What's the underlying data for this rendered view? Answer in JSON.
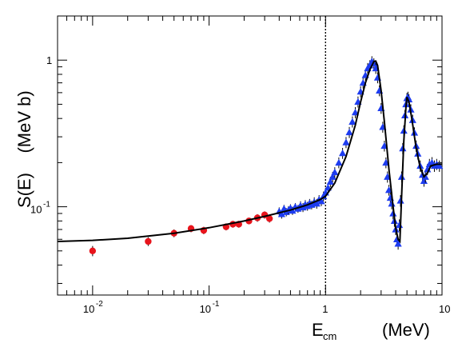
{
  "chart_data": {
    "type": "scatter",
    "title": "",
    "ylabel": "S(E)    (MeV b)",
    "xlabel_main": "E",
    "xlabel_sub": "cm",
    "xlabel_unit": "(MeV)",
    "xscale": "log",
    "yscale": "log",
    "xlim": [
      0.005,
      10
    ],
    "ylim": [
      0.025,
      2.0
    ],
    "grid": false,
    "legend": "none",
    "x_ticks": [
      {
        "value": 0.01,
        "base": "10",
        "exp": "-2"
      },
      {
        "value": 0.1,
        "base": "10",
        "exp": "-1"
      },
      {
        "value": 1,
        "base": "1",
        "exp": ""
      },
      {
        "value": 10,
        "base": "10",
        "exp": ""
      }
    ],
    "y_ticks": [
      {
        "value": 0.1,
        "base": "10",
        "exp": "-1"
      },
      {
        "value": 1,
        "base": "1",
        "exp": ""
      }
    ],
    "reference_line_x": 1,
    "series": [
      {
        "marker": "circle",
        "color": "#e8141c",
        "x": [
          0.01,
          0.03,
          0.05,
          0.07,
          0.09,
          0.14,
          0.16,
          0.18,
          0.22,
          0.26,
          0.3,
          0.33
        ],
        "y": [
          0.05,
          0.058,
          0.066,
          0.071,
          0.069,
          0.073,
          0.076,
          0.076,
          0.08,
          0.084,
          0.088,
          0.083
        ],
        "err": [
          0.004,
          0.004,
          0.004,
          0.004,
          0.004,
          0.004,
          0.004,
          0.004,
          0.004,
          0.005,
          0.005,
          0.005
        ]
      },
      {
        "marker": "triangle",
        "color": "#1d3cf0",
        "x": [
          0.4,
          0.42,
          0.44,
          0.46,
          0.48,
          0.5,
          0.52,
          0.55,
          0.58,
          0.61,
          0.64,
          0.67,
          0.7,
          0.73,
          0.76,
          0.8,
          0.84,
          0.88,
          0.92,
          0.96,
          1.0,
          1.05,
          1.1,
          1.15,
          1.2,
          1.3,
          1.4,
          1.5,
          1.6,
          1.7,
          1.8,
          1.9,
          2.0,
          2.1,
          2.2,
          2.3,
          2.4,
          2.5,
          2.6,
          2.7,
          2.8,
          2.9,
          3.0,
          3.1,
          3.2,
          3.3,
          3.4,
          3.5,
          3.6,
          3.7,
          3.8,
          3.9,
          4.0,
          4.1,
          4.2,
          4.3,
          4.4,
          4.5,
          4.6,
          4.7,
          4.8,
          4.9,
          5.0,
          5.1,
          5.2,
          5.4,
          5.6,
          5.8,
          6.0,
          6.2,
          6.5,
          6.8,
          7.0,
          7.2,
          7.5,
          7.8,
          8.2,
          8.6,
          9.0,
          9.5
        ],
        "y": [
          0.093,
          0.089,
          0.097,
          0.092,
          0.095,
          0.098,
          0.094,
          0.1,
          0.097,
          0.102,
          0.099,
          0.104,
          0.101,
          0.106,
          0.103,
          0.108,
          0.105,
          0.112,
          0.109,
          0.118,
          0.125,
          0.135,
          0.148,
          0.16,
          0.172,
          0.2,
          0.232,
          0.275,
          0.322,
          0.38,
          0.44,
          0.52,
          0.61,
          0.7,
          0.79,
          0.88,
          0.92,
          0.98,
          0.95,
          0.88,
          0.76,
          0.62,
          0.47,
          0.35,
          0.26,
          0.2,
          0.16,
          0.13,
          0.115,
          0.105,
          0.09,
          0.08,
          0.07,
          0.06,
          0.056,
          0.075,
          0.11,
          0.16,
          0.25,
          0.33,
          0.42,
          0.5,
          0.55,
          0.56,
          0.54,
          0.46,
          0.39,
          0.32,
          0.26,
          0.23,
          0.19,
          0.165,
          0.15,
          0.16,
          0.18,
          0.195,
          0.2,
          0.19,
          0.195,
          0.19
        ],
        "err": [
          0.006,
          0.006,
          0.006,
          0.006,
          0.006,
          0.006,
          0.006,
          0.006,
          0.006,
          0.007,
          0.007,
          0.007,
          0.007,
          0.007,
          0.007,
          0.008,
          0.008,
          0.008,
          0.008,
          0.009,
          0.01,
          0.011,
          0.012,
          0.013,
          0.014,
          0.017,
          0.02,
          0.024,
          0.028,
          0.033,
          0.038,
          0.045,
          0.052,
          0.06,
          0.068,
          0.075,
          0.078,
          0.083,
          0.08,
          0.075,
          0.065,
          0.053,
          0.04,
          0.03,
          0.022,
          0.017,
          0.014,
          0.011,
          0.01,
          0.009,
          0.008,
          0.007,
          0.006,
          0.005,
          0.005,
          0.007,
          0.01,
          0.014,
          0.022,
          0.029,
          0.037,
          0.044,
          0.048,
          0.049,
          0.047,
          0.04,
          0.034,
          0.028,
          0.023,
          0.02,
          0.017,
          0.015,
          0.013,
          0.014,
          0.016,
          0.017,
          0.018,
          0.017,
          0.017,
          0.017
        ]
      }
    ],
    "fit_curve": {
      "color": "#000000",
      "x": [
        0.005,
        0.01,
        0.02,
        0.05,
        0.1,
        0.2,
        0.3,
        0.5,
        0.7,
        0.9,
        1.0,
        1.2,
        1.5,
        1.8,
        2.0,
        2.2,
        2.4,
        2.6,
        2.7,
        2.8,
        3.0,
        3.2,
        3.5,
        3.8,
        4.0,
        4.2,
        4.35,
        4.5,
        4.7,
        4.9,
        5.0,
        5.2,
        5.5,
        6.0,
        6.5,
        7.0,
        7.5,
        8.0,
        9.0,
        10.0
      ],
      "y": [
        0.058,
        0.059,
        0.061,
        0.066,
        0.072,
        0.08,
        0.086,
        0.095,
        0.103,
        0.112,
        0.118,
        0.145,
        0.22,
        0.36,
        0.52,
        0.7,
        0.86,
        0.98,
        0.985,
        0.92,
        0.62,
        0.38,
        0.18,
        0.1,
        0.072,
        0.06,
        0.058,
        0.12,
        0.28,
        0.48,
        0.56,
        0.52,
        0.4,
        0.25,
        0.185,
        0.16,
        0.17,
        0.19,
        0.195,
        0.195
      ]
    }
  }
}
